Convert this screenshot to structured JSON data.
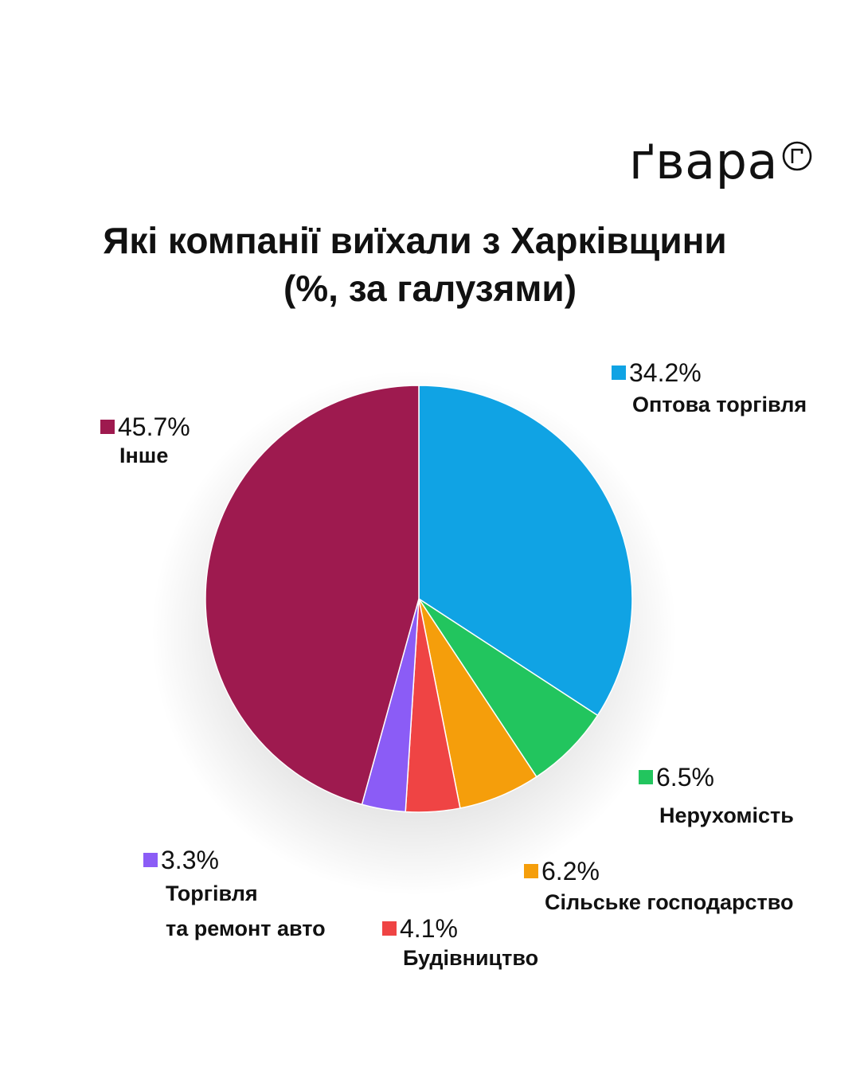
{
  "brand": {
    "logo_text": "ґвара",
    "logo_icon": "circled-g-icon"
  },
  "chart_data": {
    "type": "pie",
    "title_line1": "Які компанії виїхали з Харківщини",
    "title_line2": "(%, за галузями)",
    "unit": "%",
    "slices": [
      {
        "name": "Оптова торгівля",
        "value": 34.2,
        "pct_label": "34.2%",
        "color": "#10a3e4"
      },
      {
        "name": "Нерухомість",
        "value": 6.5,
        "pct_label": "6.5%",
        "color": "#22c55e"
      },
      {
        "name": "Сільське господарство",
        "value": 6.2,
        "pct_label": "6.2%",
        "color": "#f59e0b"
      },
      {
        "name": "Будівництво",
        "value": 4.1,
        "pct_label": "4.1%",
        "color": "#ef4444"
      },
      {
        "name_line1": "Торгівля",
        "name_line2": "та ремонт авто",
        "value": 3.3,
        "pct_label": "3.3%",
        "color": "#8b5cf6"
      },
      {
        "name": "Інше",
        "value": 45.7,
        "pct_label": "45.7%",
        "color": "#9e1a4f"
      }
    ]
  }
}
